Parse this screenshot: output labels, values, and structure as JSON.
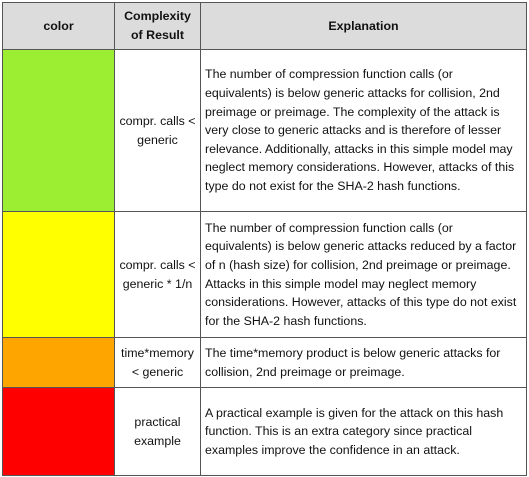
{
  "table": {
    "header": [
      "color",
      "Complexity of Result",
      "Explanation"
    ],
    "rows": [
      {
        "color": "#9cee33",
        "complexity": "compr. calls < generic",
        "explanation": "The number of compression function calls (or equivalents) is below generic attacks for collision, 2nd preimage or preimage. The complexity of the attack is very close to generic attacks and is therefore of lesser relevance. Additionally, attacks in this simple model may neglect memory considerations. However, attacks of this type do not exist for the SHA-2 hash functions."
      },
      {
        "color": "#ffff00",
        "complexity": "compr. calls < generic * 1/n",
        "explanation": "The number of compression function calls (or equivalents) is below generic attacks reduced by a factor of n (hash size) for collision, 2nd preimage or preimage. Attacks in this simple model may neglect memory considerations. However, attacks of this type do not exist for the SHA-2 hash functions."
      },
      {
        "color": "#ffa500",
        "complexity": "time*memory < generic",
        "explanation": "The time*memory product is below generic attacks for collision, 2nd preimage or preimage."
      },
      {
        "color": "#ff0000",
        "complexity": "practical example",
        "explanation": "A practical example is given for the attack on this hash function. This is an extra category since practical examples improve the confidence in an attack."
      }
    ]
  }
}
